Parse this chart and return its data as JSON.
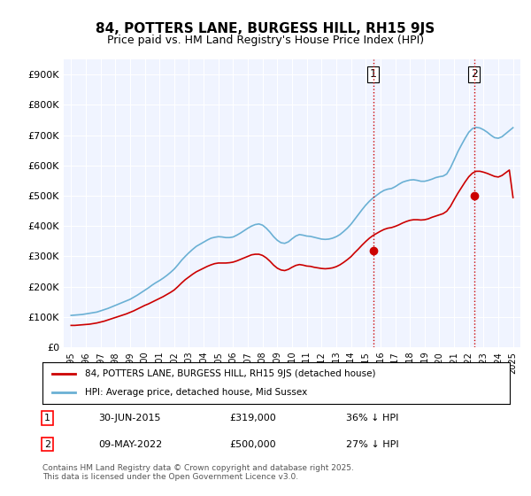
{
  "title": "84, POTTERS LANE, BURGESS HILL, RH15 9JS",
  "subtitle": "Price paid vs. HM Land Registry's House Price Index (HPI)",
  "legend_label_red": "84, POTTERS LANE, BURGESS HILL, RH15 9JS (detached house)",
  "legend_label_blue": "HPI: Average price, detached house, Mid Sussex",
  "annotation1_label": "1",
  "annotation1_date": "30-JUN-2015",
  "annotation1_price": "£319,000",
  "annotation1_hpi": "36% ↓ HPI",
  "annotation1_year": 2015.5,
  "annotation2_label": "2",
  "annotation2_date": "09-MAY-2022",
  "annotation2_price": "£500,000",
  "annotation2_hpi": "27% ↓ HPI",
  "annotation2_year": 2022.36,
  "footer": "Contains HM Land Registry data © Crown copyright and database right 2025.\nThis data is licensed under the Open Government Licence v3.0.",
  "ylim": [
    0,
    950000
  ],
  "yticks": [
    0,
    100000,
    200000,
    300000,
    400000,
    500000,
    600000,
    700000,
    800000,
    900000
  ],
  "ytick_labels": [
    "£0",
    "£100K",
    "£200K",
    "£300K",
    "£400K",
    "£500K",
    "£600K",
    "£700K",
    "£800K",
    "£900K"
  ],
  "xlim": [
    1994.5,
    2025.5
  ],
  "xticks": [
    1995,
    1996,
    1997,
    1998,
    1999,
    2000,
    2001,
    2002,
    2003,
    2004,
    2005,
    2006,
    2007,
    2008,
    2009,
    2010,
    2011,
    2012,
    2013,
    2014,
    2015,
    2016,
    2017,
    2018,
    2019,
    2020,
    2021,
    2022,
    2023,
    2024,
    2025
  ],
  "hpi_color": "#6ab0d4",
  "price_color": "#cc0000",
  "vline_color": "#cc0000",
  "vline_style": ":",
  "background_color": "#ffffff",
  "plot_bg_color": "#f0f4ff",
  "hpi_data_x": [
    1995.0,
    1995.25,
    1995.5,
    1995.75,
    1996.0,
    1996.25,
    1996.5,
    1996.75,
    1997.0,
    1997.25,
    1997.5,
    1997.75,
    1998.0,
    1998.25,
    1998.5,
    1998.75,
    1999.0,
    1999.25,
    1999.5,
    1999.75,
    2000.0,
    2000.25,
    2000.5,
    2000.75,
    2001.0,
    2001.25,
    2001.5,
    2001.75,
    2002.0,
    2002.25,
    2002.5,
    2002.75,
    2003.0,
    2003.25,
    2003.5,
    2003.75,
    2004.0,
    2004.25,
    2004.5,
    2004.75,
    2005.0,
    2005.25,
    2005.5,
    2005.75,
    2006.0,
    2006.25,
    2006.5,
    2006.75,
    2007.0,
    2007.25,
    2007.5,
    2007.75,
    2008.0,
    2008.25,
    2008.5,
    2008.75,
    2009.0,
    2009.25,
    2009.5,
    2009.75,
    2010.0,
    2010.25,
    2010.5,
    2010.75,
    2011.0,
    2011.25,
    2011.5,
    2011.75,
    2012.0,
    2012.25,
    2012.5,
    2012.75,
    2013.0,
    2013.25,
    2013.5,
    2013.75,
    2014.0,
    2014.25,
    2014.5,
    2014.75,
    2015.0,
    2015.25,
    2015.5,
    2015.75,
    2016.0,
    2016.25,
    2016.5,
    2016.75,
    2017.0,
    2017.25,
    2017.5,
    2017.75,
    2018.0,
    2018.25,
    2018.5,
    2018.75,
    2019.0,
    2019.25,
    2019.5,
    2019.75,
    2020.0,
    2020.25,
    2020.5,
    2020.75,
    2021.0,
    2021.25,
    2021.5,
    2021.75,
    2022.0,
    2022.25,
    2022.5,
    2022.75,
    2023.0,
    2023.25,
    2023.5,
    2023.75,
    2024.0,
    2024.25,
    2024.5,
    2024.75,
    2025.0
  ],
  "hpi_data_y": [
    105000,
    106000,
    107000,
    108000,
    110000,
    112000,
    114000,
    116000,
    120000,
    124000,
    128000,
    133000,
    138000,
    143000,
    148000,
    153000,
    158000,
    165000,
    172000,
    180000,
    188000,
    196000,
    205000,
    213000,
    220000,
    228000,
    237000,
    247000,
    258000,
    272000,
    287000,
    300000,
    312000,
    323000,
    333000,
    340000,
    347000,
    354000,
    360000,
    363000,
    365000,
    364000,
    362000,
    362000,
    364000,
    370000,
    377000,
    385000,
    393000,
    400000,
    405000,
    407000,
    403000,
    393000,
    380000,
    365000,
    353000,
    345000,
    343000,
    348000,
    358000,
    367000,
    372000,
    370000,
    367000,
    366000,
    363000,
    360000,
    357000,
    356000,
    357000,
    360000,
    365000,
    372000,
    382000,
    393000,
    406000,
    422000,
    438000,
    454000,
    469000,
    482000,
    493000,
    502000,
    511000,
    518000,
    522000,
    524000,
    530000,
    538000,
    545000,
    549000,
    552000,
    553000,
    551000,
    548000,
    548000,
    551000,
    555000,
    560000,
    563000,
    565000,
    572000,
    592000,
    618000,
    645000,
    668000,
    690000,
    710000,
    722000,
    726000,
    724000,
    718000,
    710000,
    700000,
    692000,
    690000,
    695000,
    705000,
    715000,
    725000
  ],
  "price_data_x": [
    1995.0,
    1995.25,
    1995.5,
    1995.75,
    1996.0,
    1996.25,
    1996.5,
    1996.75,
    1997.0,
    1997.25,
    1997.5,
    1997.75,
    1998.0,
    1998.25,
    1998.5,
    1998.75,
    1999.0,
    1999.25,
    1999.5,
    1999.75,
    2000.0,
    2000.25,
    2000.5,
    2000.75,
    2001.0,
    2001.25,
    2001.5,
    2001.75,
    2002.0,
    2002.25,
    2002.5,
    2002.75,
    2003.0,
    2003.25,
    2003.5,
    2003.75,
    2004.0,
    2004.25,
    2004.5,
    2004.75,
    2005.0,
    2005.25,
    2005.5,
    2005.75,
    2006.0,
    2006.25,
    2006.5,
    2006.75,
    2007.0,
    2007.25,
    2007.5,
    2007.75,
    2008.0,
    2008.25,
    2008.5,
    2008.75,
    2009.0,
    2009.25,
    2009.5,
    2009.75,
    2010.0,
    2010.25,
    2010.5,
    2010.75,
    2011.0,
    2011.25,
    2011.5,
    2011.75,
    2012.0,
    2012.25,
    2012.5,
    2012.75,
    2013.0,
    2013.25,
    2013.5,
    2013.75,
    2014.0,
    2014.25,
    2014.5,
    2014.75,
    2015.0,
    2015.25,
    2015.5,
    2015.75,
    2016.0,
    2016.25,
    2016.5,
    2016.75,
    2017.0,
    2017.25,
    2017.5,
    2017.75,
    2018.0,
    2018.25,
    2018.5,
    2018.75,
    2019.0,
    2019.25,
    2019.5,
    2019.75,
    2020.0,
    2020.25,
    2020.5,
    2020.75,
    2021.0,
    2021.25,
    2021.5,
    2021.75,
    2022.0,
    2022.25,
    2022.5,
    2022.75,
    2023.0,
    2023.25,
    2023.5,
    2023.75,
    2024.0,
    2024.25,
    2024.5,
    2024.75,
    2025.0
  ],
  "price_data_y": [
    72000,
    72000,
    73000,
    74000,
    75000,
    76000,
    78000,
    80000,
    83000,
    86000,
    90000,
    94000,
    98000,
    102000,
    106000,
    110000,
    115000,
    120000,
    126000,
    132000,
    138000,
    143000,
    149000,
    155000,
    161000,
    167000,
    174000,
    181000,
    189000,
    200000,
    212000,
    223000,
    232000,
    241000,
    249000,
    255000,
    261000,
    267000,
    272000,
    276000,
    278000,
    278000,
    278000,
    279000,
    281000,
    285000,
    290000,
    295000,
    300000,
    305000,
    307000,
    307000,
    303000,
    295000,
    284000,
    271000,
    261000,
    255000,
    253000,
    257000,
    264000,
    270000,
    273000,
    271000,
    268000,
    267000,
    264000,
    262000,
    260000,
    259000,
    260000,
    262000,
    266000,
    272000,
    280000,
    289000,
    299000,
    312000,
    324000,
    337000,
    349000,
    360000,
    369000,
    376000,
    383000,
    389000,
    393000,
    395000,
    399000,
    404000,
    410000,
    415000,
    419000,
    421000,
    421000,
    420000,
    421000,
    424000,
    429000,
    433000,
    437000,
    441000,
    449000,
    465000,
    487000,
    508000,
    527000,
    546000,
    563000,
    575000,
    581000,
    581000,
    578000,
    574000,
    569000,
    564000,
    562000,
    567000,
    576000,
    585000,
    494000
  ],
  "sale1_x": 2015.5,
  "sale1_y": 319000,
  "sale2_x": 2022.36,
  "sale2_y": 500000
}
